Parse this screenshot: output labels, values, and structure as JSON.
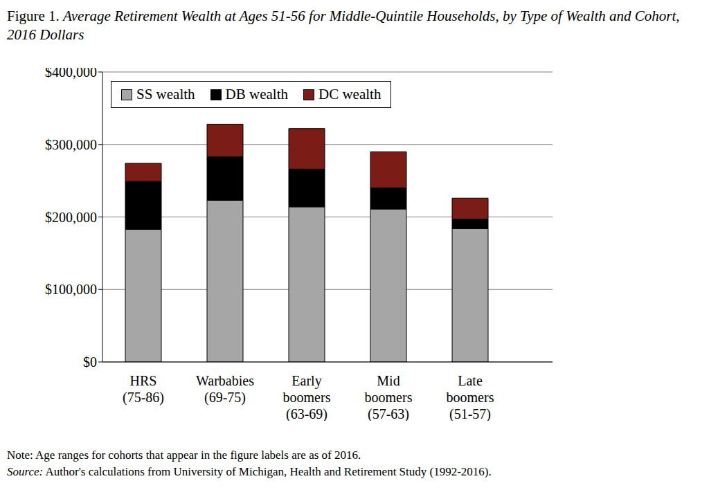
{
  "chart_data": {
    "type": "bar",
    "title": "Figure 1. Average Retirement Wealth at Ages 51-56 for Middle-Quintile Households, by Type of Wealth and Cohort, 2016 Dollars",
    "categories": [
      "HRS (75-86)",
      "Warbabies (69-75)",
      "Early boomers (63-69)",
      "Mid boomers (57-63)",
      "Late boomers (51-57)"
    ],
    "series": [
      {
        "name": "SS wealth",
        "color": "#a6a6a6",
        "values": [
          183000,
          223000,
          214000,
          211000,
          184000
        ]
      },
      {
        "name": "DB wealth",
        "color": "#000000",
        "values": [
          66000,
          60000,
          52000,
          29000,
          13000
        ]
      },
      {
        "name": "DC wealth",
        "color": "#7b1c16",
        "values": [
          25000,
          45000,
          56000,
          50000,
          29000
        ]
      }
    ],
    "stacked": true,
    "ylim": [
      0,
      400000
    ],
    "yticks": [
      {
        "value": 0,
        "label": "$0"
      },
      {
        "value": 100000,
        "label": "$100,000"
      },
      {
        "value": 200000,
        "label": "$200,000"
      },
      {
        "value": 300000,
        "label": "$300,000"
      },
      {
        "value": 400000,
        "label": "$400,000"
      }
    ],
    "grid": true,
    "legend": "upper left",
    "note": "Note: Age ranges for cohorts that appear in the figure labels are as of 2016.",
    "source": "Source: Author's calculations from University of Michigan, Health and Retirement Study (1992-2016)."
  }
}
